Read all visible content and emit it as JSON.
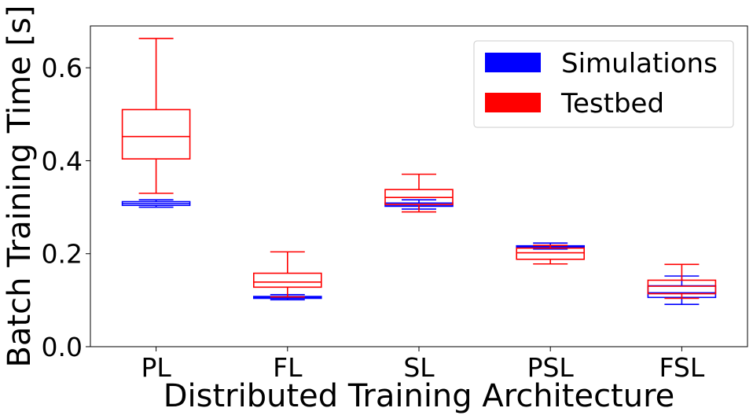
{
  "chart_data": {
    "type": "box",
    "title": "",
    "xlabel": "Distributed Training Architecture",
    "ylabel": "Batch Training Time [s]",
    "ylim": [
      0,
      0.69
    ],
    "yticks": [
      "0.0",
      "0.2",
      "0.4",
      "0.6"
    ],
    "ytick_values": [
      0.0,
      0.2,
      0.4,
      0.6
    ],
    "categories": [
      "PL",
      "FL",
      "SL",
      "PSL",
      "FSL"
    ],
    "legend": {
      "placement": "top-right"
    },
    "series": [
      {
        "name": "Simulations",
        "color": "#0000ff",
        "boxes": [
          {
            "whislo": 0.3,
            "q1": 0.304,
            "med": 0.308,
            "q3": 0.312,
            "whishi": 0.316
          },
          {
            "whislo": 0.101,
            "q1": 0.104,
            "med": 0.106,
            "q3": 0.108,
            "whishi": 0.112
          },
          {
            "whislo": 0.296,
            "q1": 0.302,
            "med": 0.305,
            "q3": 0.309,
            "whishi": 0.316
          },
          {
            "whislo": 0.21,
            "q1": 0.213,
            "med": 0.215,
            "q3": 0.217,
            "whishi": 0.223
          },
          {
            "whislo": 0.091,
            "q1": 0.106,
            "med": 0.116,
            "q3": 0.131,
            "whishi": 0.152
          }
        ]
      },
      {
        "name": "Testbed",
        "color": "#ff0000",
        "boxes": [
          {
            "whislo": 0.33,
            "q1": 0.404,
            "med": 0.452,
            "q3": 0.51,
            "whishi": 0.663
          },
          {
            "whislo": 0.107,
            "q1": 0.128,
            "med": 0.139,
            "q3": 0.158,
            "whishi": 0.204
          },
          {
            "whislo": 0.29,
            "q1": 0.306,
            "med": 0.321,
            "q3": 0.338,
            "whishi": 0.371
          },
          {
            "whislo": 0.178,
            "q1": 0.188,
            "med": 0.202,
            "q3": 0.212,
            "whishi": 0.218
          },
          {
            "whislo": 0.104,
            "q1": 0.114,
            "med": 0.13,
            "q3": 0.143,
            "whishi": 0.177
          }
        ]
      }
    ]
  }
}
